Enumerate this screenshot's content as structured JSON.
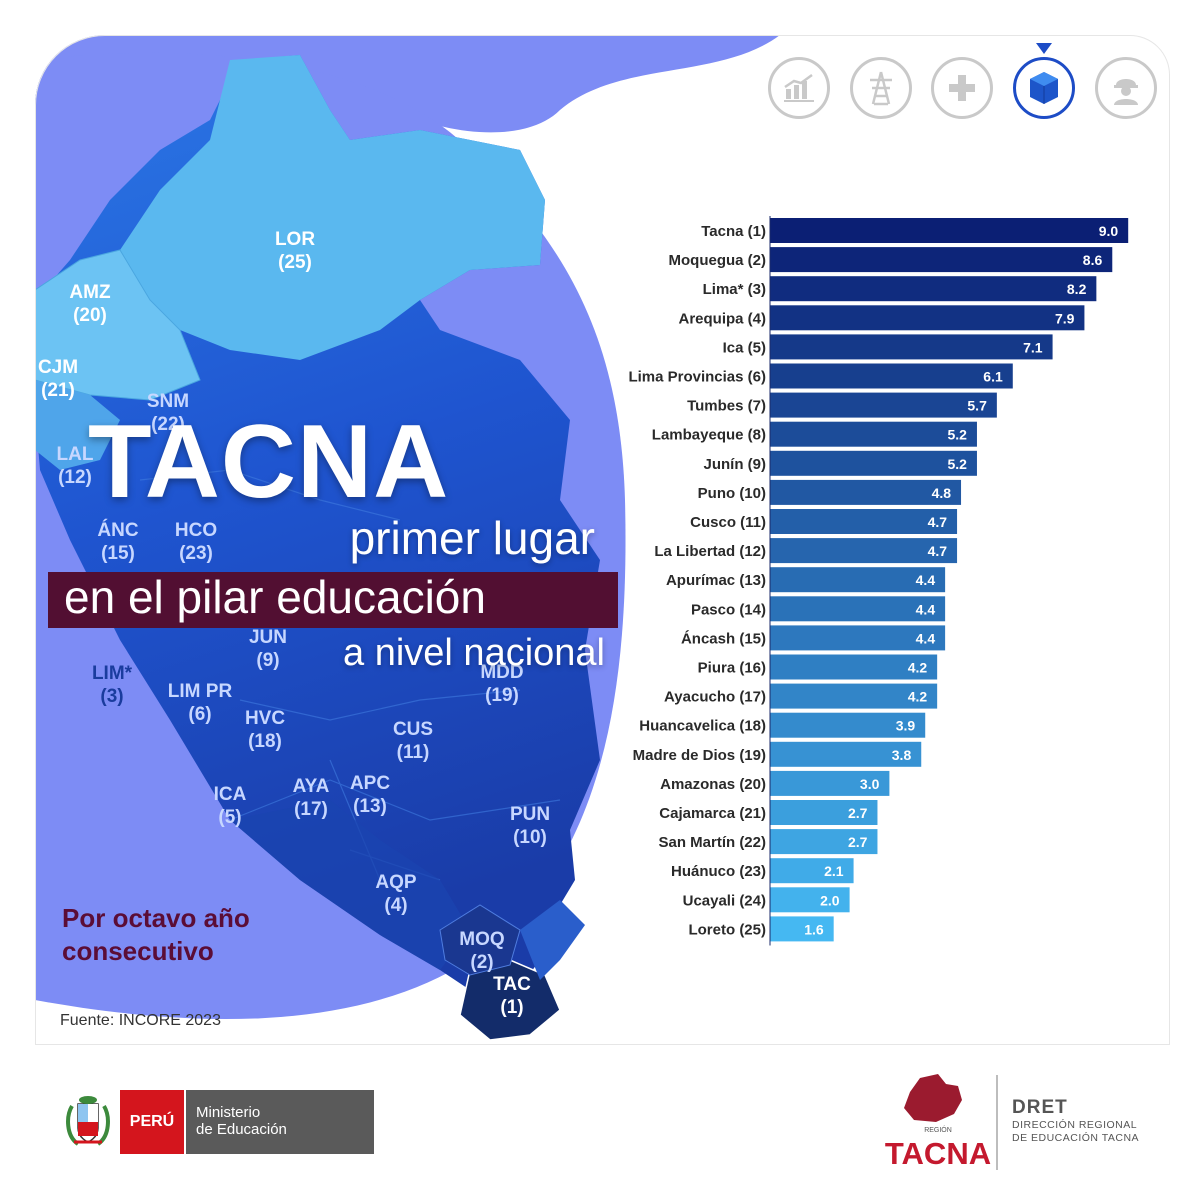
{
  "header": {
    "title": "TACNA",
    "line1": "primer lugar",
    "line2": "en el pilar educación",
    "line3": "a nivel nacional"
  },
  "tagline": "Por octavo año consecutivo",
  "source": "Fuente: INCORE 2023",
  "icons": [
    {
      "name": "economy-chart-icon",
      "active": false
    },
    {
      "name": "power-tower-icon",
      "active": false
    },
    {
      "name": "health-cross-icon",
      "active": false
    },
    {
      "name": "education-cube-icon",
      "active": true
    },
    {
      "name": "worker-helmet-icon",
      "active": false
    }
  ],
  "map": {
    "regions": [
      {
        "code": "LOR",
        "rank": "(25)"
      },
      {
        "code": "AMZ",
        "rank": "(20)"
      },
      {
        "code": "CJM",
        "rank": "(21)"
      },
      {
        "code": "SNM",
        "rank": "(22)"
      },
      {
        "code": "LAL",
        "rank": "(12)"
      },
      {
        "code": "ÁNC",
        "rank": "(15)"
      },
      {
        "code": "HCO",
        "rank": "(23)"
      },
      {
        "code": "JUN",
        "rank": "(9)"
      },
      {
        "code": "LIM*",
        "rank": "(3)"
      },
      {
        "code": "LIM PR",
        "rank": "(6)"
      },
      {
        "code": "MDD",
        "rank": "(19)"
      },
      {
        "code": "HVC",
        "rank": "(18)"
      },
      {
        "code": "CUS",
        "rank": "(11)"
      },
      {
        "code": "ICA",
        "rank": "(5)"
      },
      {
        "code": "AYA",
        "rank": "(17)"
      },
      {
        "code": "APC",
        "rank": "(13)"
      },
      {
        "code": "PUN",
        "rank": "(10)"
      },
      {
        "code": "AQP",
        "rank": "(4)"
      },
      {
        "code": "MOQ",
        "rank": "(2)"
      },
      {
        "code": "TAC",
        "rank": "(1)"
      }
    ]
  },
  "chart_data": {
    "type": "bar",
    "orientation": "horizontal",
    "title": "",
    "categories": [
      "Tacna (1)",
      "Moquegua (2)",
      "Lima* (3)",
      "Arequipa (4)",
      "Ica (5)",
      "Lima Provincias (6)",
      "Tumbes (7)",
      "Lambayeque (8)",
      "Junín (9)",
      "Puno (10)",
      "Cusco (11)",
      "La Libertad (12)",
      "Apurímac (13)",
      "Pasco (14)",
      "Áncash (15)",
      "Piura (16)",
      "Ayacucho (17)",
      "Huancavelica (18)",
      "Madre de Dios (19)",
      "Amazonas (20)",
      "Cajamarca (21)",
      "San Martín (22)",
      "Huánuco (23)",
      "Ucayali (24)",
      "Loreto (25)"
    ],
    "values": [
      9.0,
      8.6,
      8.2,
      7.9,
      7.1,
      6.1,
      5.7,
      5.2,
      5.2,
      4.8,
      4.7,
      4.7,
      4.4,
      4.4,
      4.4,
      4.2,
      4.2,
      3.9,
      3.8,
      3.0,
      2.7,
      2.7,
      2.1,
      2.0,
      1.6
    ],
    "value_labels": [
      "9.0",
      "8.6",
      "8.2",
      "7.9",
      "7.1",
      "6.1",
      "5.7",
      "5.2",
      "5.2",
      "4.8",
      "4.7",
      "4.7",
      "4.4",
      "4.4",
      "4.4",
      "4.2",
      "4.2",
      "3.9",
      "3.8",
      "3.0",
      "2.7",
      "2.7",
      "2.1",
      "2.0",
      "1.6"
    ],
    "xlim": [
      0,
      10
    ],
    "grid": false,
    "colors": {
      "darkest": "#0b1f74",
      "lightest": "#45b8f2"
    }
  },
  "footer": {
    "peru_label": "PERÚ",
    "ministry_line1": "Ministerio",
    "ministry_line2": "de Educación",
    "region_small": "REGIÓN",
    "region_name": "TACNA",
    "dret_title": "DRET",
    "dret_line1": "DIRECCIÓN REGIONAL",
    "dret_line2": "DE EDUCACIÓN TACNA"
  },
  "colors": {
    "headline_box": "#520f32",
    "tagline": "#5b0d36",
    "map_light": "#5ab8ef",
    "map_dark": "#1a3c9e",
    "background_blob": "#7d8cf5"
  }
}
